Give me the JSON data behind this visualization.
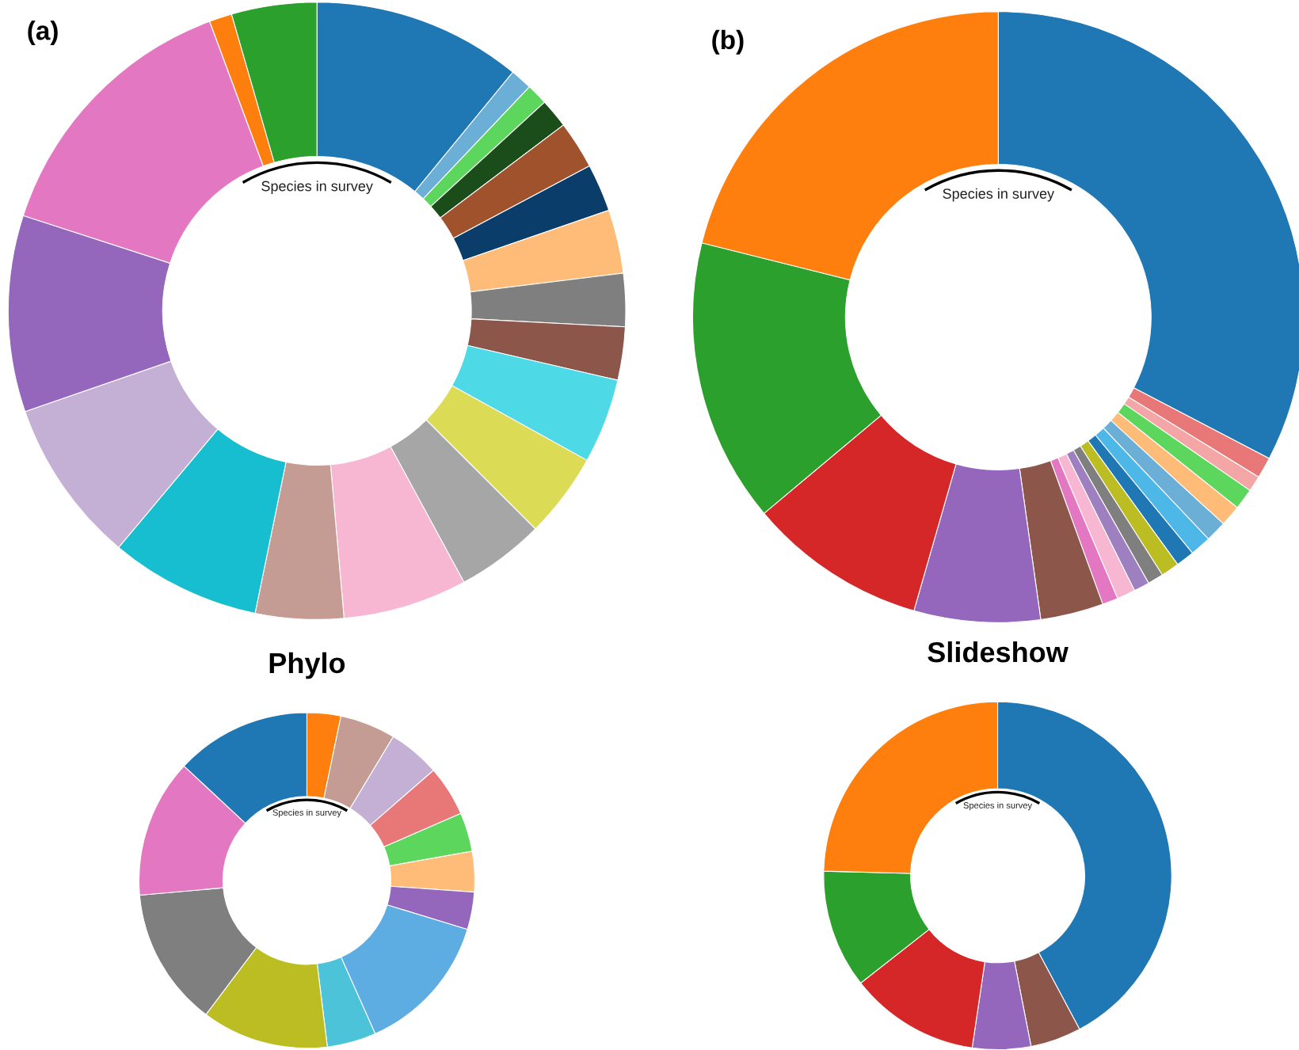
{
  "chart_data": [
    {
      "type": "donut",
      "title": "(a)",
      "annotations": [
        "Species in survey"
      ],
      "categories": [
        null,
        null,
        null,
        null,
        null,
        null,
        null,
        null,
        null,
        null,
        null,
        null,
        null,
        null,
        null,
        null,
        null,
        null,
        null,
        null
      ],
      "values": [
        10.94,
        1.14,
        1.11,
        1.53,
        2.5,
        2.5,
        3.33,
        2.78,
        2.78,
        4.44,
        4.44,
        4.61,
        6.5,
        4.61,
        7.89,
        8.61,
        10.28,
        14.36,
        1.19,
        4.46
      ],
      "colors": [
        "#1f77b4",
        "#6baed6",
        "#5cd65c",
        "#1a4d1a",
        "#a0522d",
        "#0b3d6b",
        "#ffbb78",
        "#7f7f7f",
        "#8c564b",
        "#4dd9e6",
        "#dbdb55",
        "#a6a6a6",
        "#f7b6d2",
        "#c49c94",
        "#17becf",
        "#c5b0d5",
        "#9467bd",
        "#e377c2",
        "#ff7f0e",
        "#2ca02c"
      ]
    },
    {
      "type": "donut",
      "title": "(b)",
      "annotations": [
        "Species in survey"
      ],
      "categories": [
        null,
        null,
        null,
        null,
        null,
        null,
        null,
        null,
        null,
        null,
        null,
        null,
        null,
        null,
        null,
        null,
        null,
        null
      ],
      "values": [
        32.64,
        1.11,
        0.83,
        1.11,
        1.11,
        1.11,
        1.11,
        0.97,
        0.97,
        0.83,
        0.83,
        0.97,
        0.83,
        3.33,
        6.67,
        9.44,
        15.0,
        21.08
      ],
      "colors": [
        "#1f77b4",
        "#e87878",
        "#f4a6a6",
        "#5cd65c",
        "#ffbb78",
        "#6baed6",
        "#4db8e8",
        "#1f77b4",
        "#bcbd22",
        "#7f7f7f",
        "#9e7fbf",
        "#f7b6d2",
        "#e377c2",
        "#8c564b",
        "#9467bd",
        "#d62728",
        "#2ca02c",
        "#ff7f0e"
      ]
    },
    {
      "type": "donut",
      "title": "Phylo",
      "annotations": [
        "Species in survey"
      ],
      "categories": [
        null,
        null,
        null,
        null,
        null,
        null,
        null,
        null,
        null,
        null,
        null,
        null,
        null
      ],
      "values": [
        3.25,
        5.36,
        5.0,
        4.86,
        3.75,
        3.89,
        3.61,
        13.61,
        4.72,
        12.22,
        13.33,
        13.33,
        13.07
      ],
      "colors": [
        "#ff7f0e",
        "#c49c94",
        "#c5b0d5",
        "#e87878",
        "#5cd65c",
        "#ffbb78",
        "#9467bd",
        "#5dade2",
        "#4dc3d9",
        "#bcbd22",
        "#7f7f7f",
        "#e377c2",
        "#1f77b4"
      ]
    },
    {
      "type": "donut",
      "title": "Slideshow",
      "annotations": [
        "Species in survey"
      ],
      "categories": [
        null,
        null,
        null,
        null,
        null,
        null
      ],
      "values": [
        42.2,
        4.72,
        5.42,
        12.08,
        11.0,
        24.58
      ],
      "colors": [
        "#1f77b4",
        "#8c564b",
        "#9467bd",
        "#d62728",
        "#2ca02c",
        "#ff7f0e"
      ]
    }
  ]
}
